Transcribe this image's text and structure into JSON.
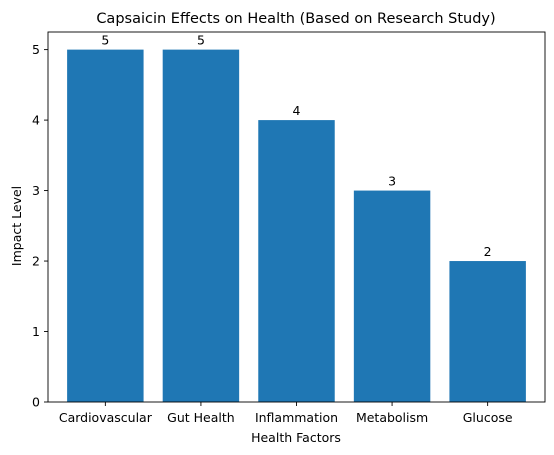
{
  "chart_data": {
    "type": "bar",
    "title": "Capsaicin Effects on Health (Based on Research Study)",
    "xlabel": "Health Factors",
    "ylabel": "Impact Level",
    "categories": [
      "Cardiovascular",
      "Gut Health",
      "Inflammation",
      "Metabolism",
      "Glucose"
    ],
    "values": [
      5,
      5,
      4,
      3,
      2
    ],
    "ylim": [
      0,
      5.25
    ],
    "yticks": [
      0,
      1,
      2,
      3,
      4,
      5
    ],
    "bar_color": "#1f77b4",
    "grid": false,
    "legend": false
  }
}
